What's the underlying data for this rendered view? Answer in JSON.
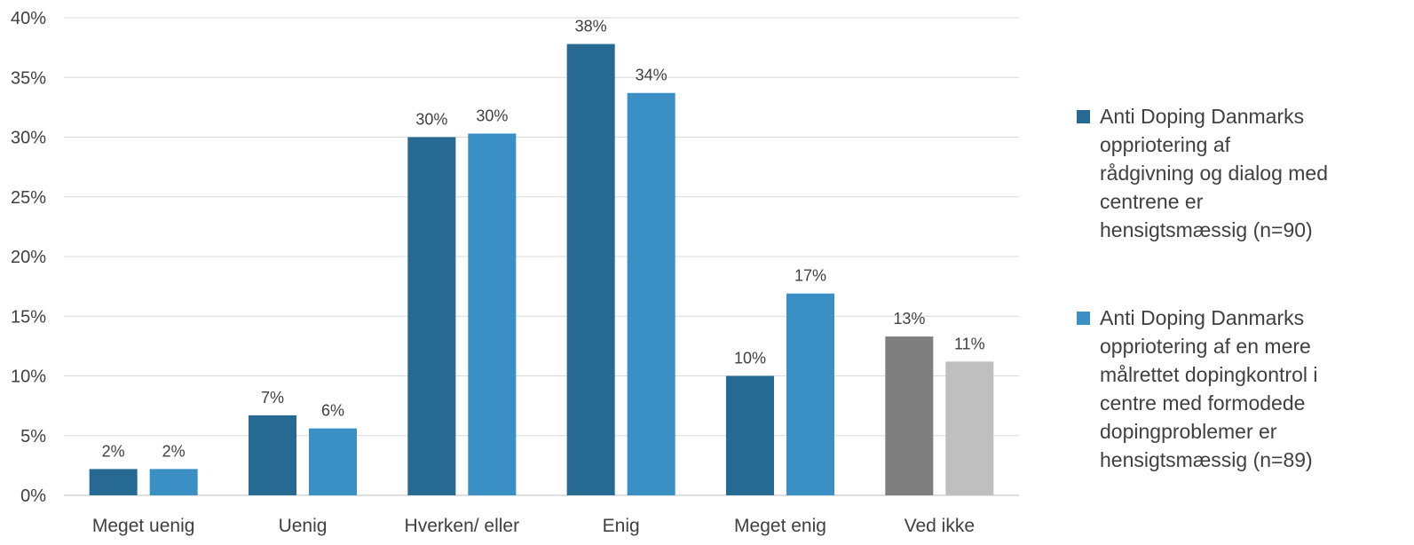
{
  "chart_data": {
    "type": "bar",
    "categories": [
      "Meget uenig",
      "Uenig",
      "Hverken/ eller",
      "Enig",
      "Meget enig",
      "Ved ikke"
    ],
    "series": [
      {
        "name": "Anti Doping Danmarks\noppriotering af\nrådgivning og dialog med\ncentrene er\nhensigtsmæssig  (n=90)",
        "values": [
          2.2,
          6.7,
          30.0,
          37.8,
          10.0,
          13.3
        ],
        "labels": [
          "2%",
          "7%",
          "30%",
          "38%",
          "10%",
          "13%"
        ],
        "color": "#266A94",
        "point_colors": [
          "#266A94",
          "#266A94",
          "#266A94",
          "#266A94",
          "#266A94",
          "#7F7F7F"
        ]
      },
      {
        "name": "Anti Doping Danmarks\noppriotering af en mere\nmålrettet dopingkontrol i\ncentre med formodede\ndopingproblemer er\nhensigtsmæssig (n=89)",
        "values": [
          2.2,
          5.6,
          30.3,
          33.7,
          16.9,
          11.2
        ],
        "labels": [
          "2%",
          "6%",
          "30%",
          "34%",
          "17%",
          "11%"
        ],
        "color": "#3A8FC4",
        "point_colors": [
          "#3A8FC4",
          "#3A8FC4",
          "#3A8FC4",
          "#3A8FC4",
          "#3A8FC4",
          "#BFBFBF"
        ]
      }
    ],
    "yticks": [
      "0%",
      "5%",
      "10%",
      "15%",
      "20%",
      "25%",
      "30%",
      "35%",
      "40%"
    ],
    "ylim": [
      0,
      40
    ],
    "grid": true,
    "legend_position": "right",
    "title": "",
    "xlabel": "",
    "ylabel": ""
  }
}
